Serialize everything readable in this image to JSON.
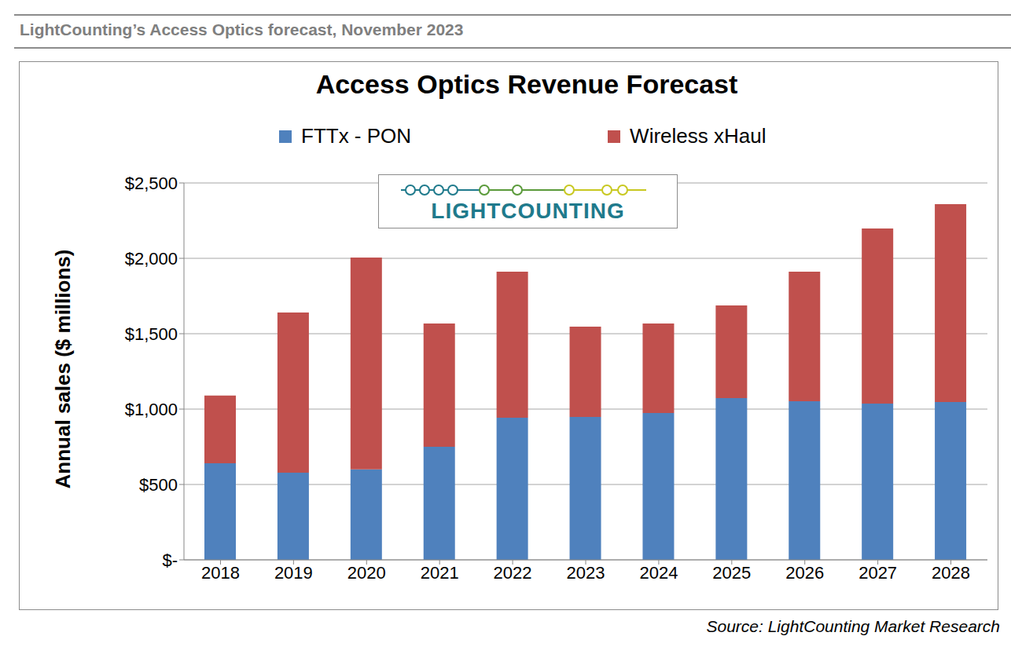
{
  "header": "LightCounting’s Access Optics forecast, November 2023",
  "logo": "LIGHTCOUNTING",
  "source": "Source: LightCounting Market Research",
  "chart_data": {
    "type": "bar",
    "title": "Access Optics Revenue Forecast",
    "y_label": "Annual sales ($ millions)",
    "categories": [
      "2018",
      "2019",
      "2020",
      "2021",
      "2022",
      "2023",
      "2024",
      "2025",
      "2026",
      "2027",
      "2028"
    ],
    "series": [
      {
        "name": "FTTx - PON",
        "color": "#4f81bd",
        "values": [
          640,
          578,
          600,
          750,
          943,
          948,
          974,
          1073,
          1052,
          1036,
          1047
        ]
      },
      {
        "name": "Wireless xHaul",
        "color": "#c0504d",
        "values": [
          450,
          1063,
          1405,
          818,
          968,
          599,
          594,
          615,
          859,
          1162,
          1312
        ]
      }
    ],
    "stacked": true,
    "ylim": [
      0,
      2500
    ],
    "yticks": [
      {
        "value": 0,
        "label": "$-"
      },
      {
        "value": 500,
        "label": "$500"
      },
      {
        "value": 1000,
        "label": "$1,000"
      },
      {
        "value": 1500,
        "label": "$1,500"
      },
      {
        "value": 2000,
        "label": "$2,000"
      },
      {
        "value": 2500,
        "label": "$2,500"
      }
    ],
    "grid": true,
    "legend": "top"
  }
}
